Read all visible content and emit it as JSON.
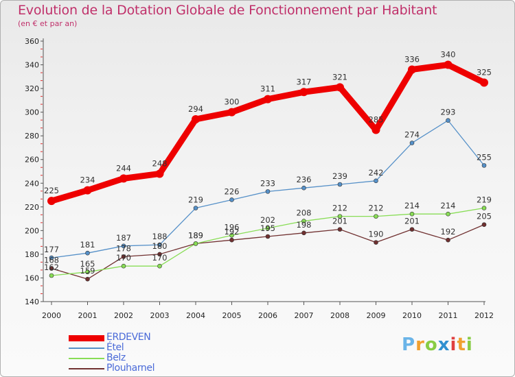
{
  "header": {
    "title": "Evolution de la Dotation Globale de Fonctionnement par Habitant",
    "subtitle": "(en € et par an)"
  },
  "chart_data": {
    "type": "line",
    "title": "Evolution de la Dotation Globale de Fonctionnement par Habitant",
    "subtitle": "(en € et par an)",
    "xlabel": "",
    "ylabel": "",
    "x": [
      "2000",
      "2001",
      "2002",
      "2003",
      "2004",
      "2005",
      "2006",
      "2007",
      "2008",
      "2009",
      "2010",
      "2011",
      "2012"
    ],
    "ylim": [
      140,
      360
    ],
    "yticks": [
      140,
      160,
      180,
      200,
      220,
      240,
      260,
      280,
      300,
      320,
      340,
      360
    ],
    "grid": false,
    "legend_position": "bottom-left",
    "series": [
      {
        "name": "ERDEVEN",
        "color": "#ee0000",
        "values": [
          225,
          234,
          244,
          248,
          294,
          300,
          311,
          317,
          321,
          285,
          336,
          340,
          325
        ]
      },
      {
        "name": "Étel",
        "color": "#5590c8",
        "values": [
          177,
          181,
          187,
          188,
          219,
          226,
          233,
          236,
          239,
          242,
          274,
          293,
          255
        ]
      },
      {
        "name": "Belz",
        "color": "#88dd55",
        "values": [
          162,
          165,
          170,
          170,
          189,
          196,
          202,
          208,
          212,
          212,
          214,
          214,
          219
        ]
      },
      {
        "name": "Plouharnel",
        "color": "#703030",
        "values": [
          168,
          159,
          178,
          180,
          189,
          192,
          195,
          198,
          201,
          190,
          201,
          192,
          205
        ]
      }
    ],
    "data_labels": {
      "ERDEVEN": [
        "225",
        "234",
        "244",
        "248",
        "294",
        "300",
        "311",
        "317",
        "321",
        "285",
        "336",
        "340",
        "325"
      ],
      "Étel": [
        "177",
        "181",
        "187",
        "188",
        "219",
        "226",
        "233",
        "236",
        "239",
        "242",
        "274",
        "293",
        "255"
      ],
      "Belz": [
        "162",
        "165",
        "170",
        "170",
        "189",
        "196",
        "202",
        "208",
        "212",
        "212",
        "214",
        "214",
        "219"
      ],
      "Plouharnel": [
        "168",
        "159",
        "178",
        "180",
        "189",
        "192",
        "195",
        "198",
        "201",
        "190",
        "201",
        "192",
        "205"
      ]
    }
  },
  "logo": {
    "letters": [
      "P",
      "r",
      "o",
      "x",
      "i",
      "t",
      "i"
    ],
    "colors": [
      "#6ab4e8",
      "#f0a030",
      "#88cc44",
      "#3090d0",
      "#e04040",
      "#f0a030",
      "#88cc44"
    ]
  }
}
